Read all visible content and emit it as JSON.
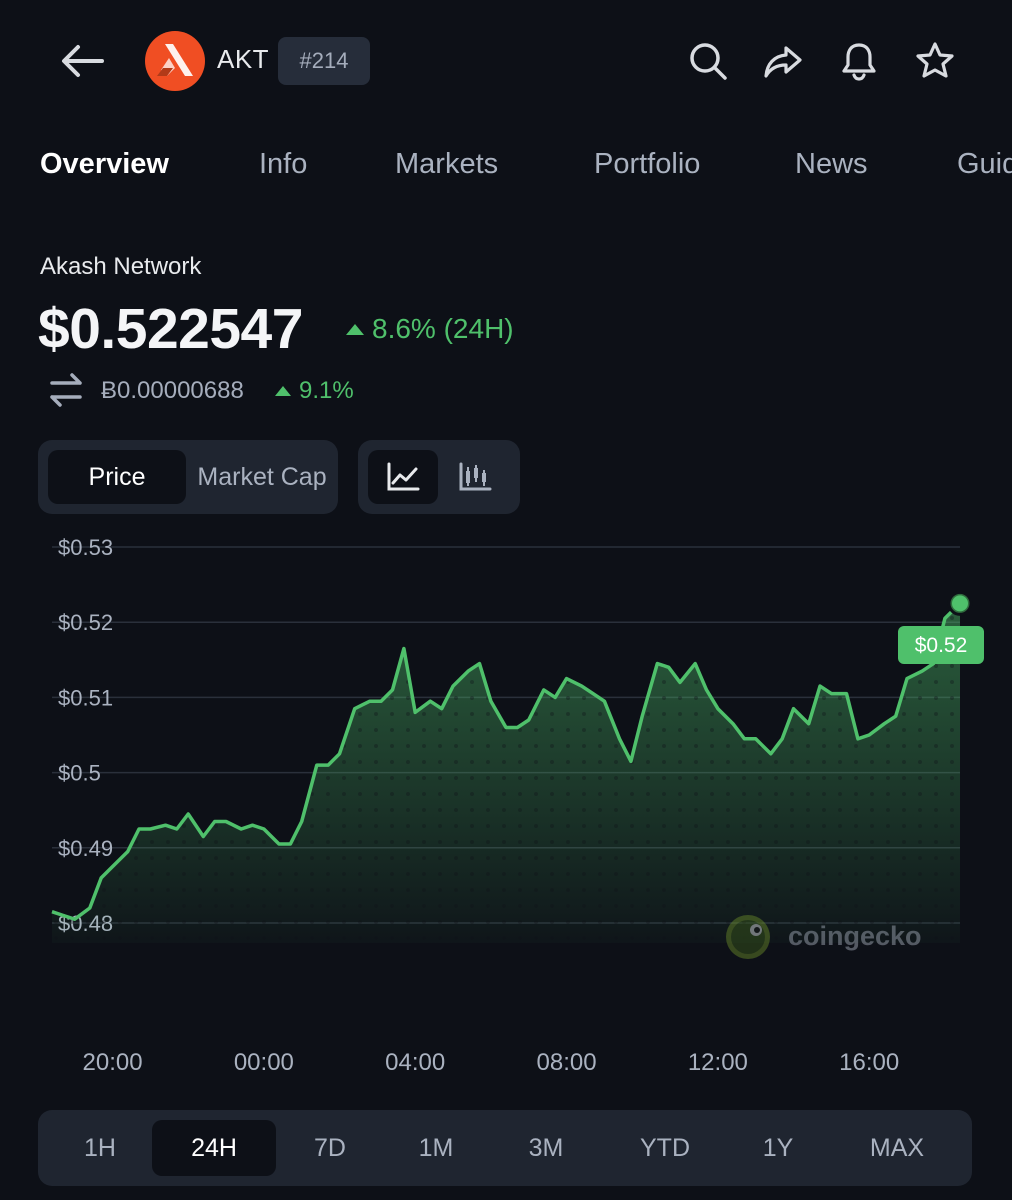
{
  "header": {
    "ticker": "AKT",
    "rank": "#214",
    "icons": [
      "back-arrow-icon",
      "akash-logo",
      "search-icon",
      "share-icon",
      "bell-icon",
      "star-icon"
    ]
  },
  "tabs": [
    "Overview",
    "Info",
    "Markets",
    "Portfolio",
    "News",
    "Guides"
  ],
  "coin": {
    "name": "Akash Network",
    "price": "$0.522547",
    "change_24h": "8.6% (24H)",
    "btc_price": "Ƀ0.00000688",
    "btc_change": "9.1%"
  },
  "toggles": {
    "metric": [
      "Price",
      "Market Cap"
    ],
    "selected_metric": "Price",
    "chart_modes": [
      "line-chart-icon",
      "candlestick-icon"
    ],
    "selected_mode": "line-chart-icon"
  },
  "colors": {
    "accent_green": "#4fc06b",
    "background": "#0d1017",
    "panel": "#1f2530",
    "logo_orange": "#f04e23"
  },
  "watermark": "coingecko",
  "chart_data": {
    "type": "area",
    "y_ticks": [
      "$0.48",
      "$0.49",
      "$0.5",
      "$0.51",
      "$0.52",
      "$0.53"
    ],
    "x_ticks": [
      "20:00",
      "00:00",
      "04:00",
      "08:00",
      "12:00",
      "16:00"
    ],
    "ylim": [
      0.48,
      0.53
    ],
    "grid": true,
    "last_label": "$0.52",
    "series": [
      {
        "hours": [
          0,
          0.3,
          0.6,
          1,
          1.3,
          1.6,
          2,
          2.3,
          2.6,
          3,
          3.3,
          3.6,
          4,
          4.3,
          4.6,
          5,
          5.3,
          5.6,
          6,
          6.3,
          6.6,
          7,
          7.3,
          7.6,
          8,
          8.2,
          8.4,
          8.7,
          9,
          9.3,
          9.6,
          10,
          10.3,
          10.6,
          11,
          11.3,
          11.6,
          12,
          12.3,
          12.6,
          13,
          13.3,
          13.6,
          14,
          14.3,
          14.6,
          15,
          15.3,
          15.6,
          16,
          16.3,
          16.6,
          17,
          17.3,
          17.6,
          18,
          18.3,
          18.6,
          19,
          19.3,
          19.6,
          20,
          20.3,
          20.6,
          21,
          21.3,
          21.6,
          22,
          22.3,
          22.6,
          23,
          23.3,
          23.6,
          24
        ],
        "values": [
          0.4815,
          0.481,
          0.4805,
          0.482,
          0.486,
          0.4875,
          0.4895,
          0.4925,
          0.4925,
          0.493,
          0.4925,
          0.4945,
          0.4915,
          0.4935,
          0.4935,
          0.4925,
          0.493,
          0.4925,
          0.4905,
          0.4905,
          0.4935,
          0.501,
          0.501,
          0.5025,
          0.5085,
          0.509,
          0.5095,
          0.5095,
          0.511,
          0.5165,
          0.508,
          0.5095,
          0.5085,
          0.5115,
          0.5135,
          0.5145,
          0.5095,
          0.506,
          0.506,
          0.507,
          0.511,
          0.51,
          0.5125,
          0.5115,
          0.5105,
          0.5095,
          0.5045,
          0.5015,
          0.5075,
          0.5145,
          0.514,
          0.512,
          0.5145,
          0.511,
          0.5085,
          0.5065,
          0.5045,
          0.5045,
          0.5025,
          0.5045,
          0.5085,
          0.5065,
          0.5115,
          0.5105,
          0.5105,
          0.5045,
          0.505,
          0.5065,
          0.5075,
          0.5125,
          0.5135,
          0.5145,
          0.5205,
          0.5225
        ]
      }
    ]
  },
  "ranges": [
    "1H",
    "24H",
    "7D",
    "1M",
    "3M",
    "YTD",
    "1Y",
    "MAX"
  ],
  "selected_range": "24H"
}
